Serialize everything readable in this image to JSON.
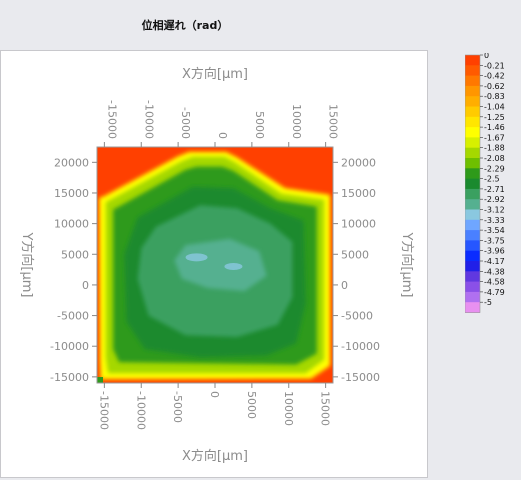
{
  "title": "位相遅れ（rad）",
  "chart_data": {
    "type": "heatmap",
    "xlabel_top": "X方向[μm]",
    "xlabel_bottom": "X方向[μm]",
    "ylabel_left": "Y方向[μm]",
    "ylabel_right": "Y方向[μm]",
    "xlim": [
      -16000,
      16000
    ],
    "ylim": [
      -16000,
      22500
    ],
    "x_ticks": [
      -15000,
      -10000,
      -5000,
      0,
      5000,
      10000,
      15000
    ],
    "y_ticks": [
      20000,
      15000,
      10000,
      5000,
      0,
      -5000,
      -10000,
      -15000
    ],
    "x_tick_labels": [
      "-15000",
      "-10000",
      "-5000",
      "0",
      "5000",
      "10000",
      "15000"
    ],
    "y_tick_labels": [
      "20000",
      "15000",
      "10000",
      "5000",
      "0",
      "-5000",
      "-10000",
      "-15000"
    ],
    "colorbar": {
      "labels": [
        "0",
        "-0.21",
        "-0.42",
        "-0.62",
        "-0.83",
        "-1.04",
        "-1.25",
        "-1.46",
        "-1.67",
        "-1.88",
        "-2.08",
        "-2.29",
        "-2.5",
        "-2.71",
        "-2.92",
        "-3.12",
        "-3.33",
        "-3.54",
        "-3.75",
        "-3.96",
        "-4.17",
        "-4.38",
        "-4.58",
        "-4.79",
        "-5"
      ],
      "colors": [
        "#ff4000",
        "#ff5a00",
        "#ff7800",
        "#ff9600",
        "#ffae00",
        "#ffcb00",
        "#ffe600",
        "#ffff00",
        "#d7f000",
        "#a5d800",
        "#6ebf00",
        "#2e9a1a",
        "#1a8a2e",
        "#3aa060",
        "#55b090",
        "#8ac8e0",
        "#6fa6ff",
        "#4a80ff",
        "#2656ff",
        "#0a2cff",
        "#2020e8",
        "#6038e0",
        "#8a50e8",
        "#b070f0",
        "#e890f0"
      ]
    },
    "data_regions": [
      {
        "value": -0.1,
        "description": "background corners"
      },
      {
        "value": -1.4,
        "description": "edge ring yellow"
      },
      {
        "value": -2.0,
        "description": "light green ring"
      },
      {
        "value": -2.4,
        "description": "green plateau"
      },
      {
        "value": -2.8,
        "description": "central teal"
      }
    ]
  }
}
